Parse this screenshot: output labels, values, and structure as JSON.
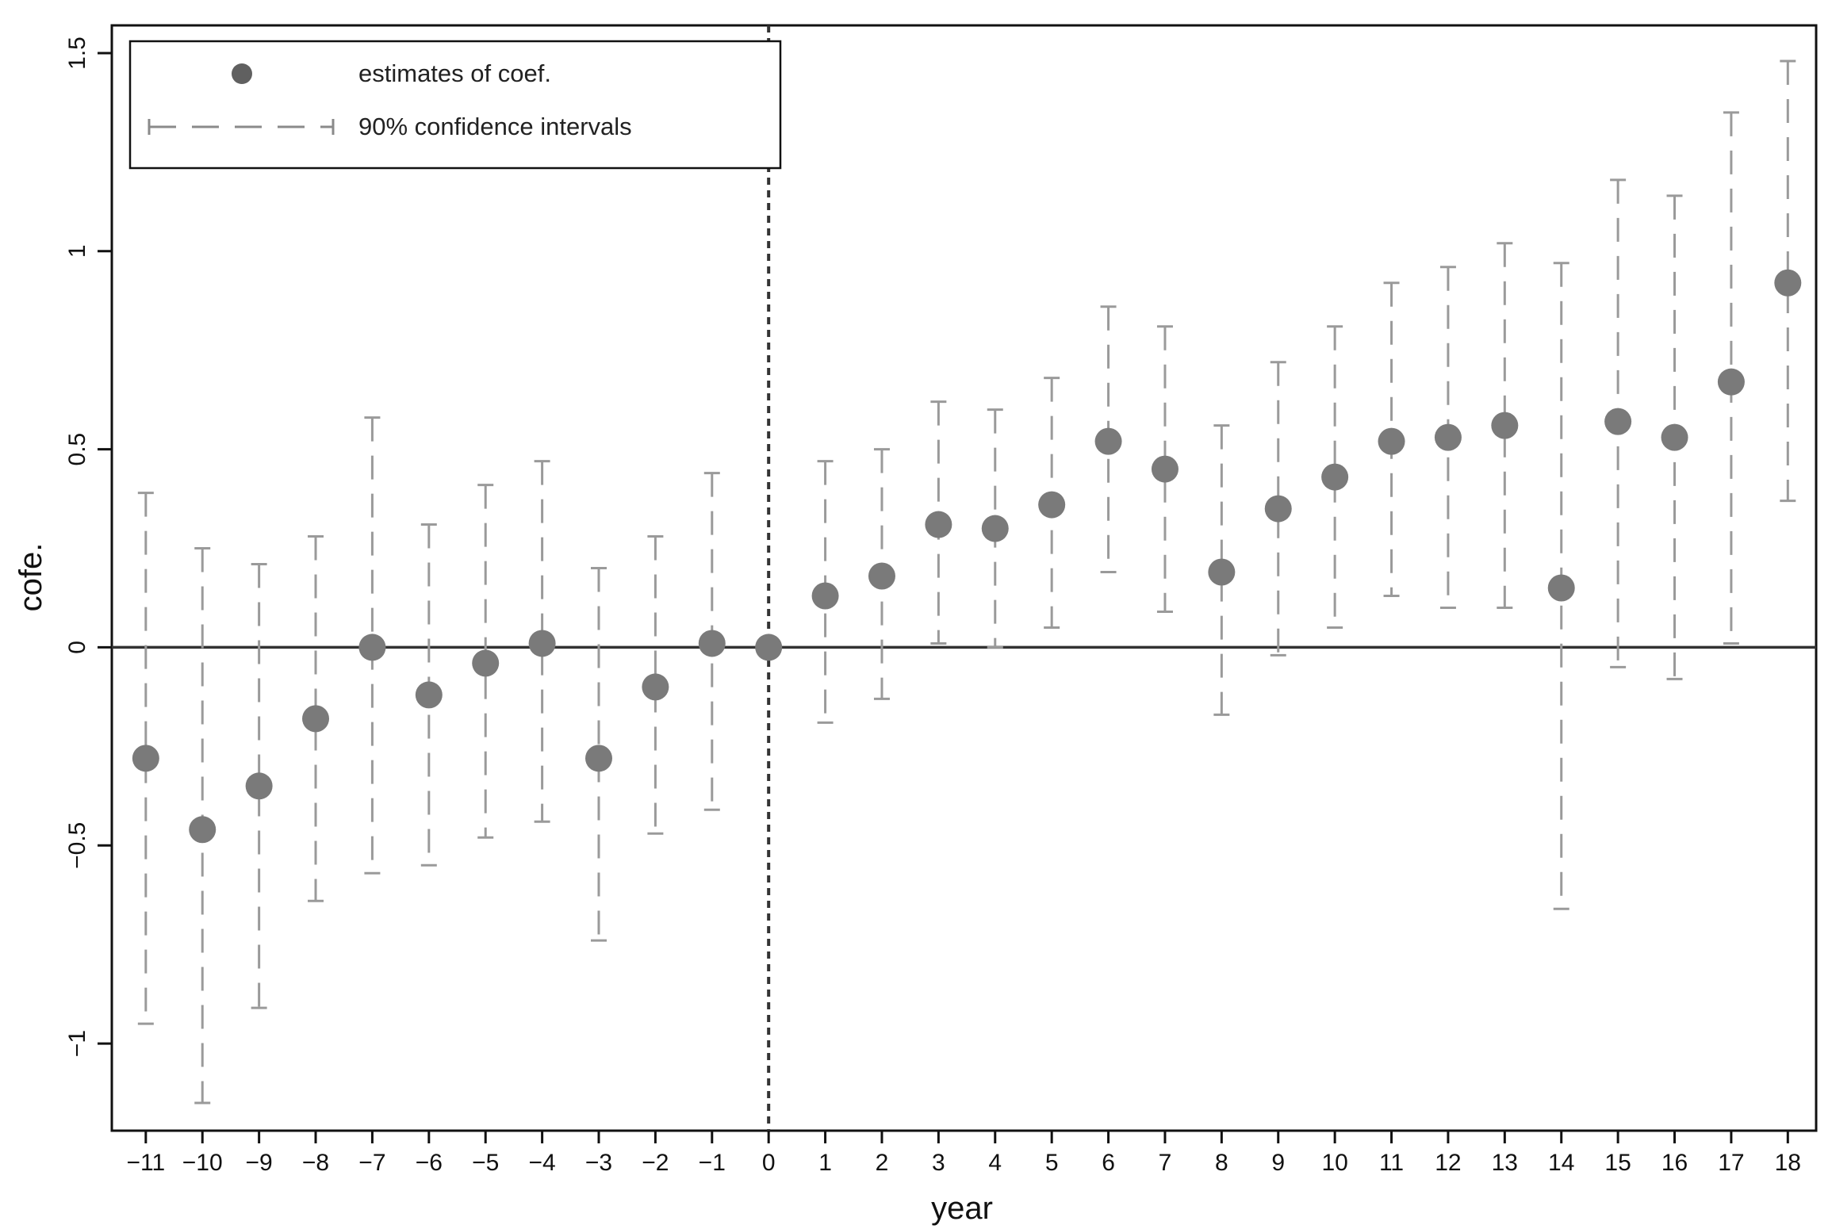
{
  "chart_data": {
    "type": "scatter",
    "xlabel": "year",
    "ylabel": "cofe.",
    "xlim": [
      -11.6,
      18.5
    ],
    "ylim": [
      -1.22,
      1.57
    ],
    "x_ticks": [
      -11,
      -10,
      -9,
      -8,
      -7,
      -6,
      -5,
      -4,
      -3,
      -2,
      -1,
      0,
      1,
      2,
      3,
      4,
      5,
      6,
      7,
      8,
      9,
      10,
      11,
      12,
      13,
      14,
      15,
      16,
      17,
      18
    ],
    "x_tick_labels": [
      "−11",
      "−10",
      "−9",
      "−8",
      "−7",
      "−6",
      "−5",
      "−4",
      "−3",
      "−2",
      "−1",
      "0",
      "1",
      "2",
      "3",
      "4",
      "5",
      "6",
      "7",
      "8",
      "9",
      "10",
      "11",
      "12",
      "13",
      "14",
      "15",
      "16",
      "17",
      "18"
    ],
    "y_ticks": [
      -1,
      -0.5,
      0,
      0.5,
      1,
      1.5
    ],
    "y_tick_labels": [
      "−1",
      "−0.5",
      "0",
      "0.5",
      "1",
      "1.5"
    ],
    "reference_lines": {
      "horizontal_y": 0,
      "vertical_x": 0
    },
    "legend": {
      "placement": "top-left",
      "entries": [
        "estimates of coef.",
        "90% confidence intervals"
      ]
    },
    "series": [
      {
        "name": "estimates of coef.",
        "x": [
          -11,
          -10,
          -9,
          -8,
          -7,
          -6,
          -5,
          -4,
          -3,
          -2,
          -1,
          0,
          1,
          2,
          3,
          4,
          5,
          6,
          7,
          8,
          9,
          10,
          11,
          12,
          13,
          14,
          15,
          16,
          17,
          18
        ],
        "values": [
          -0.28,
          -0.46,
          -0.35,
          -0.18,
          0.0,
          -0.12,
          -0.04,
          0.01,
          -0.28,
          -0.1,
          0.01,
          0.0,
          0.13,
          0.18,
          0.31,
          0.3,
          0.36,
          0.52,
          0.45,
          0.19,
          0.35,
          0.43,
          0.52,
          0.53,
          0.56,
          0.15,
          0.57,
          0.53,
          0.67,
          0.92
        ]
      },
      {
        "name": "90% confidence intervals",
        "x": [
          -11,
          -10,
          -9,
          -8,
          -7,
          -6,
          -5,
          -4,
          -3,
          -2,
          -1,
          0,
          1,
          2,
          3,
          4,
          5,
          6,
          7,
          8,
          9,
          10,
          11,
          12,
          13,
          14,
          15,
          16,
          17,
          18
        ],
        "lower": [
          -0.95,
          -1.15,
          -0.91,
          -0.64,
          -0.57,
          -0.55,
          -0.48,
          -0.44,
          -0.74,
          -0.47,
          -0.41,
          0.0,
          -0.19,
          -0.13,
          0.01,
          0.0,
          0.05,
          0.19,
          0.09,
          -0.17,
          -0.02,
          0.05,
          0.13,
          0.1,
          0.1,
          -0.66,
          -0.05,
          -0.08,
          0.01,
          0.37
        ],
        "upper": [
          0.39,
          0.25,
          0.21,
          0.28,
          0.58,
          0.31,
          0.41,
          0.47,
          0.2,
          0.28,
          0.44,
          0.0,
          0.47,
          0.5,
          0.62,
          0.6,
          0.68,
          0.86,
          0.81,
          0.56,
          0.72,
          0.81,
          0.92,
          0.96,
          1.02,
          0.97,
          1.18,
          1.14,
          1.35,
          1.48
        ]
      }
    ],
    "colors": {
      "point": "#7a7a7a",
      "ci": "#9a9a9a",
      "axis": "#111111",
      "legend_point": "#606060"
    }
  }
}
